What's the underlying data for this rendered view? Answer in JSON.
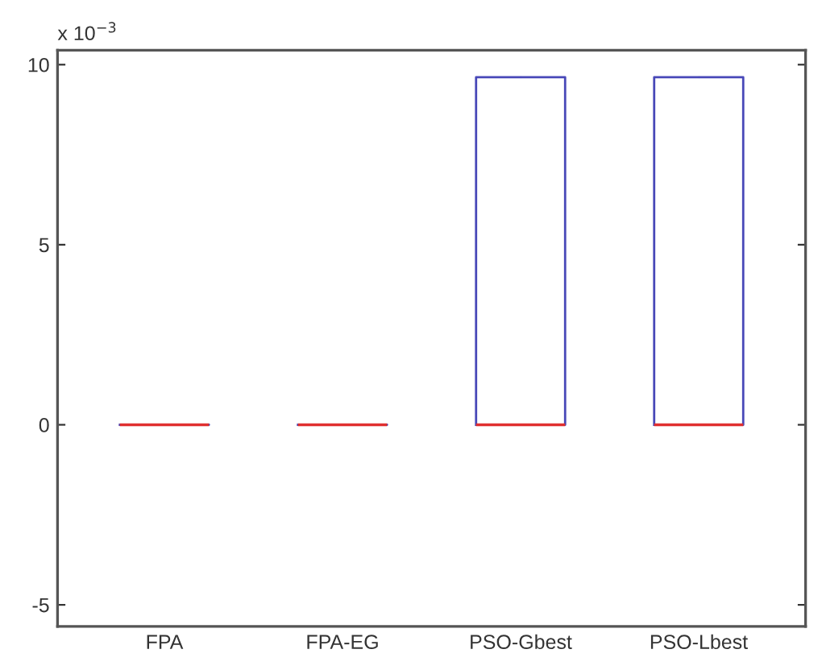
{
  "chart_data": {
    "type": "box",
    "categories": [
      "FPA",
      "FPA-EG",
      "PSO-Gbest",
      "PSO-Lbest"
    ],
    "series": [
      {
        "color": "#4848b8",
        "boxes": [
          {
            "low": 0,
            "q1": 0,
            "median": 0,
            "q3": 0,
            "high": 0
          },
          {
            "low": 0,
            "q1": 0,
            "median": 0,
            "q3": 0,
            "high": 0
          },
          {
            "low": 0,
            "q1": 0,
            "median": 0,
            "q3": 9.65,
            "high": 9.65
          },
          {
            "low": 0,
            "q1": 0,
            "median": 0,
            "q3": 9.65,
            "high": 9.65
          }
        ]
      }
    ],
    "ylim": [
      -5.6,
      10.4
    ],
    "yticks": [
      -5,
      0,
      5,
      10
    ],
    "grid": false,
    "annotations": [
      "x 10$^{−3}$"
    ]
  }
}
